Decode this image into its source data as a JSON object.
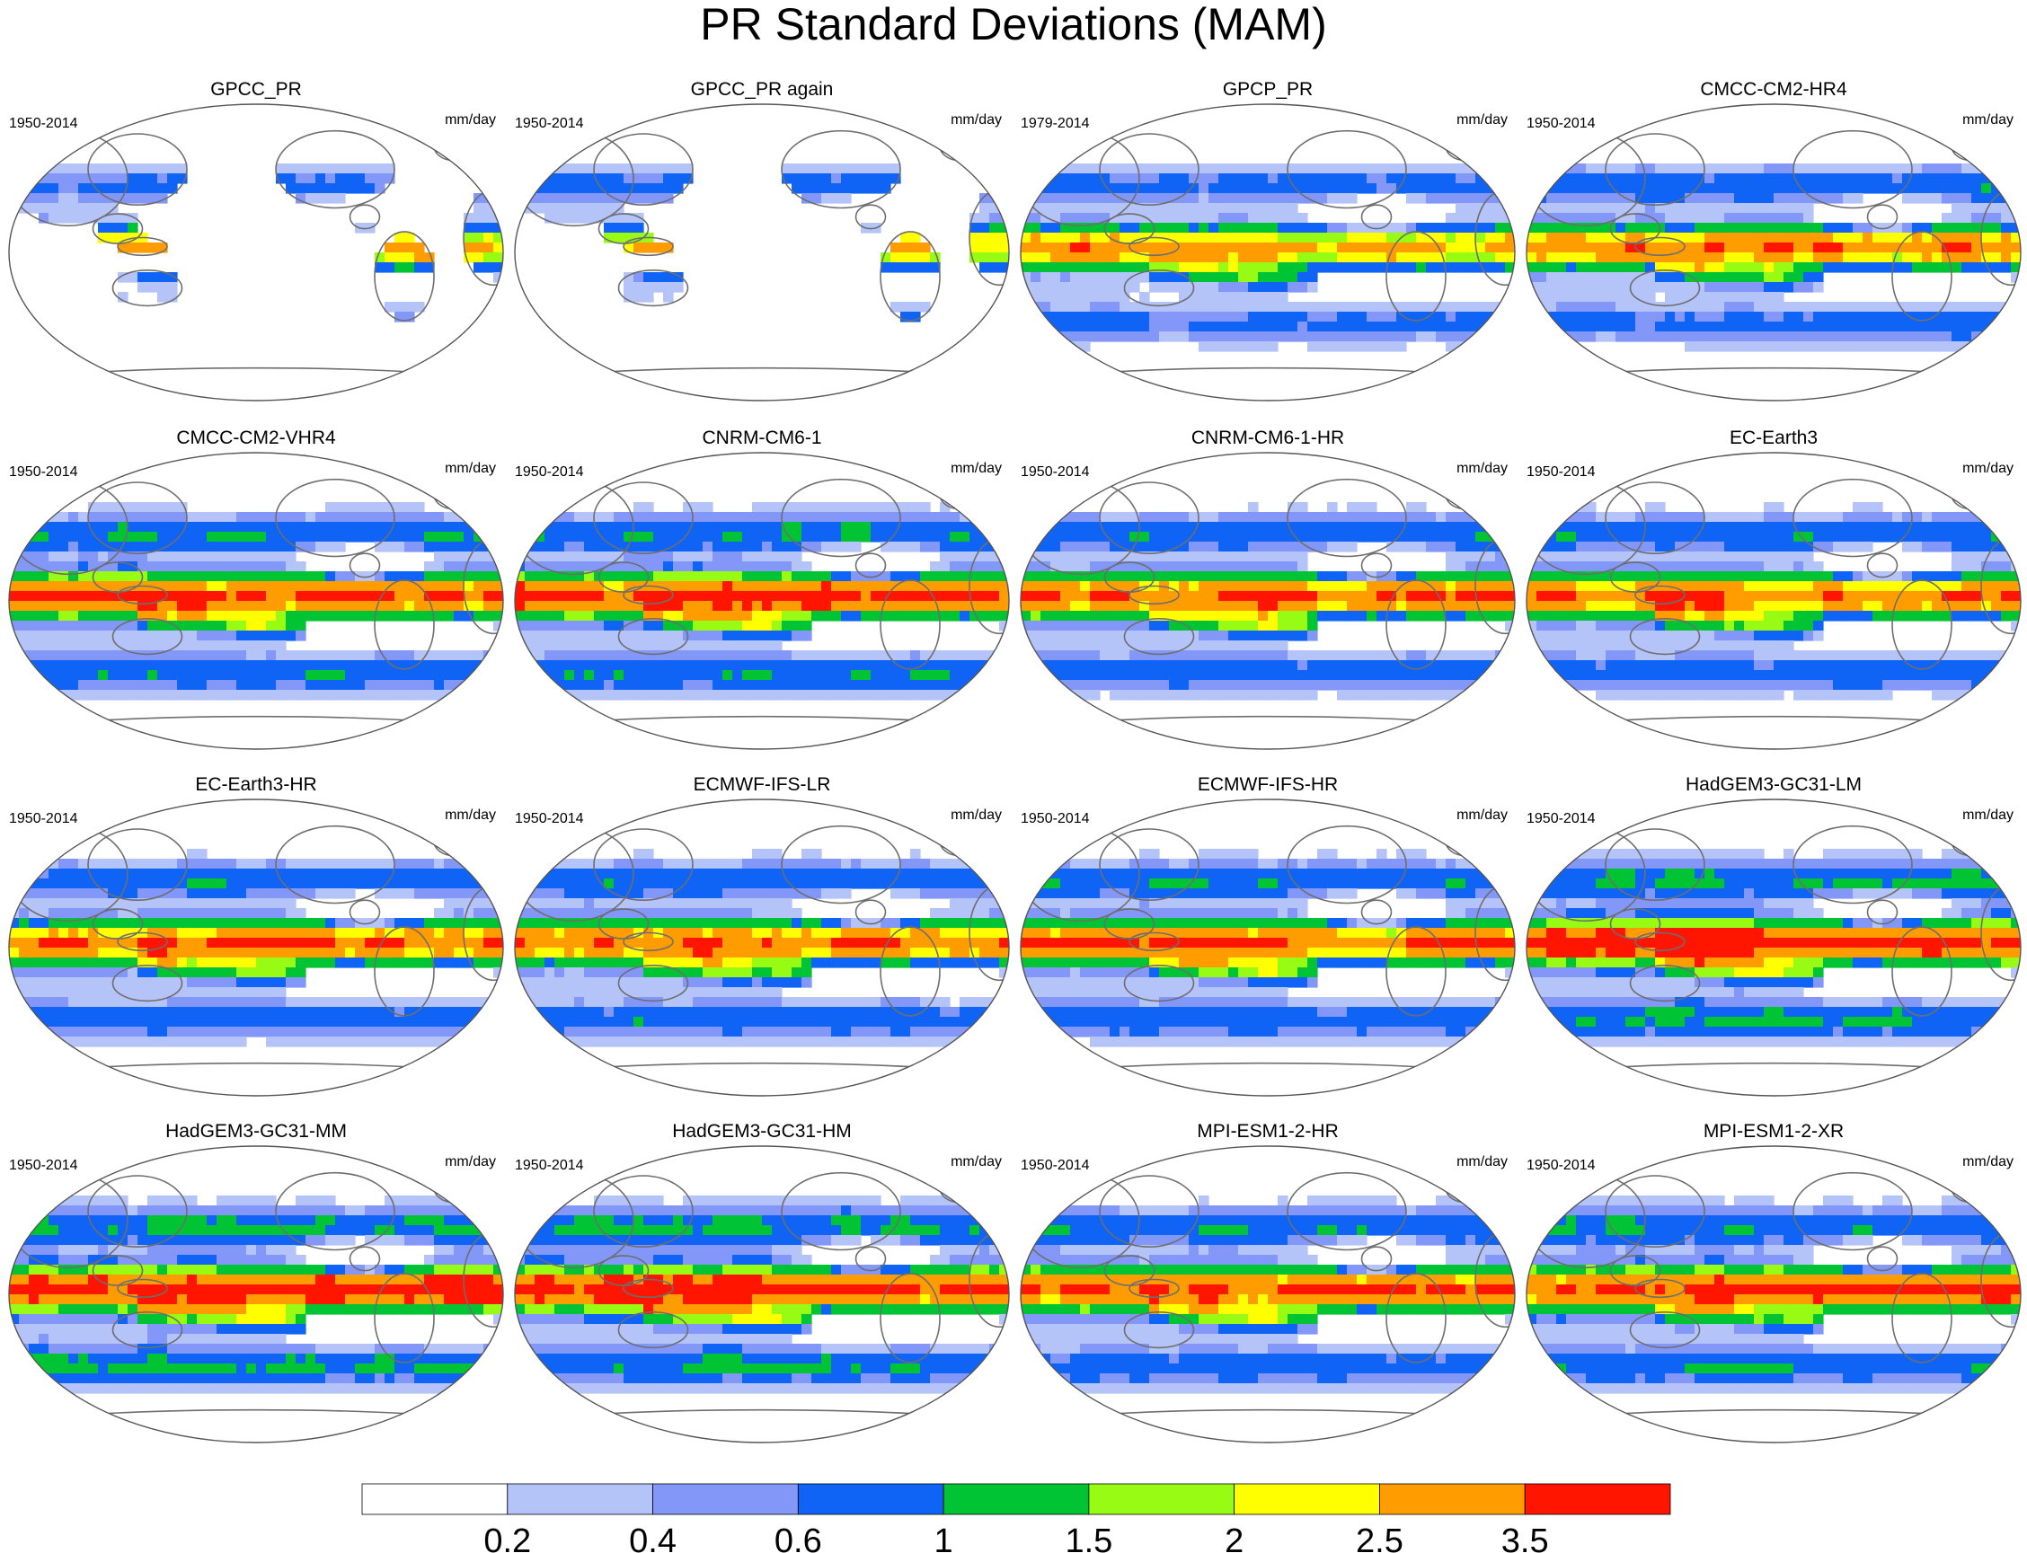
{
  "figure": {
    "title": "PR Standard Deviations (MAM)"
  },
  "colorbar": {
    "colors": [
      "#ffffff",
      "#b4c3f8",
      "#8297f8",
      "#0f64f5",
      "#00c433",
      "#98fb13",
      "#ffff00",
      "#ff9d00",
      "#ff1500"
    ],
    "labels": [
      "0.2",
      "0.4",
      "0.6",
      "1",
      "1.5",
      "2",
      "2.5",
      "3.5"
    ],
    "levels": [
      0.2,
      0.4,
      0.6,
      1,
      1.5,
      2,
      2.5,
      3.5
    ]
  },
  "panels": [
    {
      "title": "GPCC_PR",
      "left": "1950-2014",
      "right": "mm/day",
      "land_only": true,
      "intensity": 0.85
    },
    {
      "title": "GPCC_PR again",
      "left": "1950-2014",
      "right": "mm/day",
      "land_only": true,
      "intensity": 0.85
    },
    {
      "title": "GPCP_PR",
      "left": "1979-2014",
      "right": "mm/day",
      "land_only": false,
      "intensity": 0.8
    },
    {
      "title": "CMCC-CM2-HR4",
      "left": "1950-2014",
      "right": "mm/day",
      "land_only": false,
      "intensity": 0.9
    },
    {
      "title": "CMCC-CM2-VHR4",
      "left": "1950-2014",
      "right": "mm/day",
      "land_only": false,
      "intensity": 1.05
    },
    {
      "title": "CNRM-CM6-1",
      "left": "1950-2014",
      "right": "mm/day",
      "land_only": false,
      "intensity": 1.1
    },
    {
      "title": "CNRM-CM6-1-HR",
      "left": "1950-2014",
      "right": "mm/day",
      "land_only": false,
      "intensity": 1.0
    },
    {
      "title": "EC-Earth3",
      "left": "1950-2014",
      "right": "mm/day",
      "land_only": false,
      "intensity": 0.95
    },
    {
      "title": "EC-Earth3-HR",
      "left": "1950-2014",
      "right": "mm/day",
      "land_only": false,
      "intensity": 0.95
    },
    {
      "title": "ECMWF-IFS-LR",
      "left": "1950-2014",
      "right": "mm/day",
      "land_only": false,
      "intensity": 0.95
    },
    {
      "title": "ECMWF-IFS-HR",
      "left": "1950-2014",
      "right": "mm/day",
      "land_only": false,
      "intensity": 1.0
    },
    {
      "title": "HadGEM3-GC31-LM",
      "left": "1950-2014",
      "right": "mm/day",
      "land_only": false,
      "intensity": 1.2
    },
    {
      "title": "HadGEM3-GC31-MM",
      "left": "1950-2014",
      "right": "mm/day",
      "land_only": false,
      "intensity": 1.2
    },
    {
      "title": "HadGEM3-GC31-HM",
      "left": "1950-2014",
      "right": "mm/day",
      "land_only": false,
      "intensity": 1.2
    },
    {
      "title": "MPI-ESM1-2-HR",
      "left": "1950-2014",
      "right": "mm/day",
      "land_only": false,
      "intensity": 1.05
    },
    {
      "title": "MPI-ESM1-2-XR",
      "left": "1950-2014",
      "right": "mm/day",
      "land_only": false,
      "intensity": 1.1
    }
  ]
}
